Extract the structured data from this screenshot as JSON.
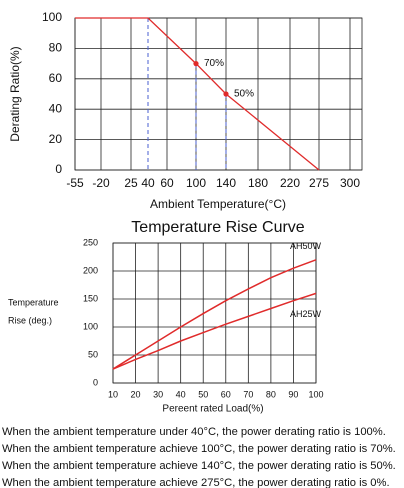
{
  "chart_data": [
    {
      "type": "line",
      "y_label": "Derating  Ratio(%)",
      "x_label": "Ambient Temperature(°C)",
      "xticks": [
        -55,
        -20,
        25,
        40,
        60,
        100,
        140,
        180,
        220,
        275,
        300
      ],
      "yticks": [
        0,
        20,
        40,
        60,
        80,
        100
      ],
      "ylim": [
        0,
        100
      ],
      "xlim": [
        -55,
        300
      ],
      "grid": true,
      "series": [
        {
          "color": "#e02b2b",
          "x": [
            -55,
            40,
            100,
            140,
            275
          ],
          "values": [
            100,
            100,
            70,
            50,
            0
          ],
          "value_labels": [
            null,
            null,
            "70%",
            "50%",
            null
          ]
        }
      ]
    },
    {
      "type": "line",
      "title": "Temperature Rise Curve",
      "y_label": [
        "Temperature",
        "Rise (deg.)"
      ],
      "x_label": "Pereent rated Load(%)",
      "x": [
        10,
        20,
        30,
        40,
        50,
        60,
        70,
        80,
        90,
        100
      ],
      "xlim": [
        10,
        100
      ],
      "xticks": [
        10,
        20,
        30,
        40,
        50,
        60,
        70,
        80,
        90,
        100
      ],
      "ylim": [
        0,
        250
      ],
      "yticks": [
        0,
        50,
        100,
        150,
        200,
        250
      ],
      "grid": true,
      "series": [
        {
          "name": "AH50W",
          "color": "#e02b2b",
          "values": [
            25,
            50,
            75,
            100,
            124,
            147,
            168,
            188,
            205,
            220
          ]
        },
        {
          "name": "AH25W",
          "color": "#e02b2b",
          "values": [
            25,
            42,
            58,
            75,
            90,
            105,
            119,
            133,
            147,
            160
          ]
        }
      ]
    }
  ],
  "notes": [
    "When the ambient temperature under 40°C, the power derating ratio is 100%.",
    "When the ambient temperature achieve 100°C, the power derating ratio is 70%.",
    "When the ambient temperature achieve 140°C, the power derating ratio is 50%.",
    "When the ambient temperature achieve 275°C, the power derating ratio is 0%."
  ]
}
